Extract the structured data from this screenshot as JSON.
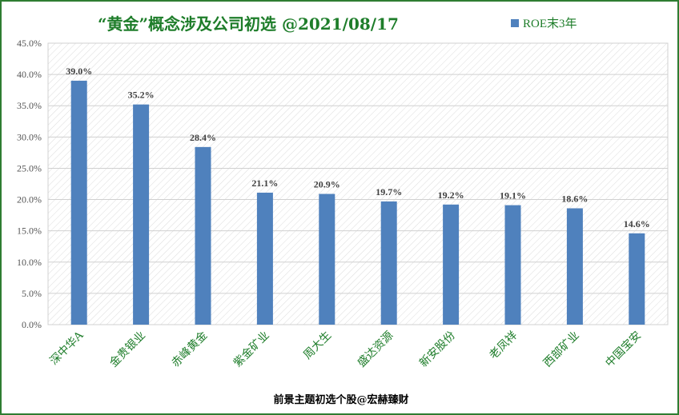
{
  "chart_data": {
    "type": "bar",
    "title": "“黄金”概念涉及公司初选  @2021/08/17",
    "categories": [
      "深中华A",
      "金贵银业",
      "赤峰黄金",
      "紫金矿业",
      "周大生",
      "盛达资源",
      "新安股份",
      "老凤祥",
      "西部矿业",
      "中国宝安"
    ],
    "series": [
      {
        "name": "ROE末3年",
        "values": [
          39.0,
          35.2,
          28.4,
          21.1,
          20.9,
          19.7,
          19.2,
          19.1,
          18.6,
          14.6
        ]
      }
    ],
    "data_labels": [
      "39.0%",
      "35.2%",
      "28.4%",
      "21.1%",
      "20.9%",
      "19.7%",
      "19.2%",
      "19.1%",
      "18.6%",
      "14.6%"
    ],
    "y_ticks": [
      "0.0%",
      "5.0%",
      "10.0%",
      "15.0%",
      "20.0%",
      "25.0%",
      "30.0%",
      "35.0%",
      "40.0%",
      "45.0%"
    ],
    "ylim": [
      0,
      45
    ],
    "xlabel": "",
    "ylabel": "",
    "grid": true,
    "legend_position": "top-right",
    "bar_color": "#4f81bd",
    "footer": "前景主题初选个股@宏赫臻财"
  }
}
